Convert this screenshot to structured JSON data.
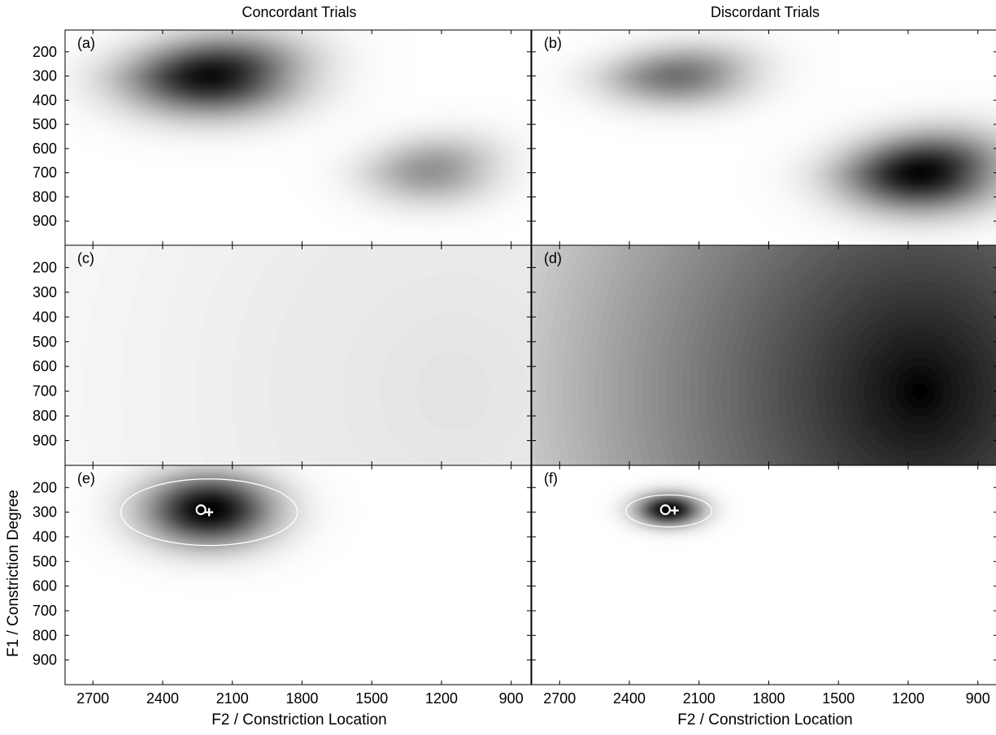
{
  "chart_data": {
    "type": "heatmap",
    "column_titles": [
      "Concordant Trials",
      "Discordant Trials"
    ],
    "xlabel": "F2 / Constriction Location",
    "ylabel": "F1 / Constriction Degree",
    "x_reversed": true,
    "xlim": [
      2820,
      815
    ],
    "ylim": [
      1000,
      110
    ],
    "xticks": [
      2700,
      2400,
      2100,
      1800,
      1500,
      1200,
      900
    ],
    "yticks": [
      200,
      300,
      400,
      500,
      600,
      700,
      800,
      900
    ],
    "colormap": "white-to-black (darker = higher density)",
    "panels": [
      {
        "label": "(a)",
        "row": 0,
        "col": 0,
        "kind": "mixture",
        "components": [
          {
            "f2": 2200,
            "f1": 300,
            "sx": 250,
            "sy": 110,
            "weight": 0.95,
            "skew": 0.35
          },
          {
            "f2": 1250,
            "f1": 690,
            "sx": 190,
            "sy": 95,
            "weight": 0.42,
            "skew": 0.35
          }
        ]
      },
      {
        "label": "(b)",
        "row": 0,
        "col": 1,
        "kind": "mixture",
        "components": [
          {
            "f2": 2200,
            "f1": 300,
            "sx": 210,
            "sy": 85,
            "weight": 0.55,
            "skew": 0.35
          },
          {
            "f2": 1150,
            "f1": 700,
            "sx": 230,
            "sy": 110,
            "weight": 0.98,
            "skew": 0.35
          }
        ]
      },
      {
        "label": "(c)",
        "row": 1,
        "col": 0,
        "kind": "broad",
        "center": {
          "f2": 1150,
          "f1": 700
        },
        "min_gray": 0.89,
        "max_gray": 0.975,
        "scale": 1900,
        "levels": 12
      },
      {
        "label": "(d)",
        "row": 1,
        "col": 1,
        "kind": "broad",
        "center": {
          "f2": 1150,
          "f1": 700
        },
        "min_gray": 0.0,
        "max_gray": 0.93,
        "scale": 2050,
        "levels": 60
      },
      {
        "label": "(e)",
        "row": 2,
        "col": 0,
        "kind": "target",
        "components": [
          {
            "f2": 2200,
            "f1": 290,
            "sx": 190,
            "sy": 100,
            "weight": 1.0,
            "skew": 0.0
          }
        ],
        "ellipse": {
          "f2": 2200,
          "f1": 300,
          "rx": 380,
          "ry": 135
        },
        "circle_marker": {
          "f2": 2235,
          "f1": 290
        },
        "plus_marker": {
          "f2": 2200,
          "f1": 300
        }
      },
      {
        "label": "(f)",
        "row": 2,
        "col": 1,
        "kind": "target",
        "components": [
          {
            "f2": 2230,
            "f1": 290,
            "sx": 95,
            "sy": 45,
            "weight": 1.0,
            "skew": 0.0
          }
        ],
        "ellipse": {
          "f2": 2230,
          "f1": 295,
          "rx": 185,
          "ry": 65
        },
        "circle_marker": {
          "f2": 2245,
          "f1": 290
        },
        "plus_marker": {
          "f2": 2205,
          "f1": 293
        }
      }
    ]
  }
}
